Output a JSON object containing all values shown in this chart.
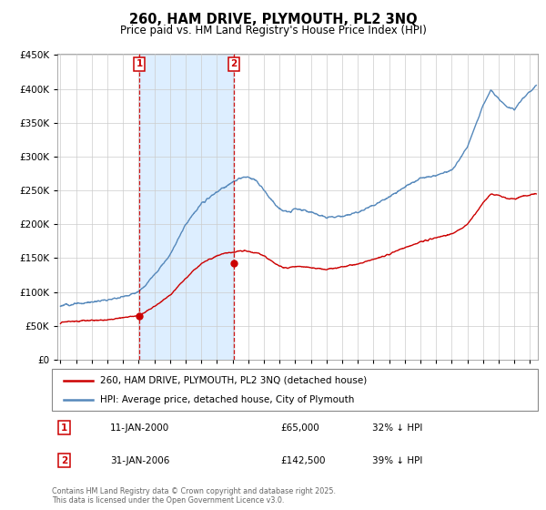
{
  "title": "260, HAM DRIVE, PLYMOUTH, PL2 3NQ",
  "subtitle": "Price paid vs. HM Land Registry's House Price Index (HPI)",
  "legend_label_red": "260, HAM DRIVE, PLYMOUTH, PL2 3NQ (detached house)",
  "legend_label_blue": "HPI: Average price, detached house, City of Plymouth",
  "annotation1_label": "1",
  "annotation1_date": "11-JAN-2000",
  "annotation1_price": "£65,000",
  "annotation1_pct": "32% ↓ HPI",
  "annotation2_label": "2",
  "annotation2_date": "31-JAN-2006",
  "annotation2_price": "£142,500",
  "annotation2_pct": "39% ↓ HPI",
  "footnote": "Contains HM Land Registry data © Crown copyright and database right 2025.\nThis data is licensed under the Open Government Licence v3.0.",
  "red_color": "#cc0000",
  "blue_color": "#5588bb",
  "shade_color": "#ddeeff",
  "vline_color": "#cc0000",
  "box_color": "#cc0000",
  "ylim_min": 0,
  "ylim_max": 450000,
  "yticks": [
    0,
    50000,
    100000,
    150000,
    200000,
    250000,
    300000,
    350000,
    400000,
    450000
  ],
  "sale1_x": 2000.03,
  "sale1_y": 65000,
  "sale2_x": 2006.08,
  "sale2_y": 142500,
  "xmin": 1994.8,
  "xmax": 2025.5
}
